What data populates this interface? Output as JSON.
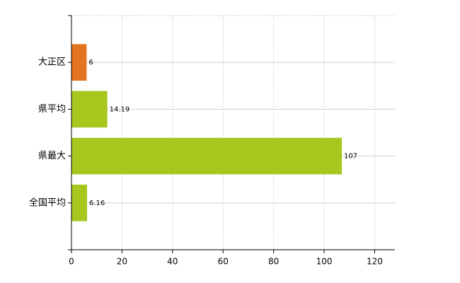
{
  "chart_data": {
    "type": "bar",
    "orientation": "horizontal",
    "categories": [
      "大正区",
      "県平均",
      "県最大",
      "全国平均"
    ],
    "values": [
      6,
      14.19,
      107,
      6.16
    ],
    "colors": [
      "#e2731f",
      "#a6c71d",
      "#a6c71d",
      "#a6c71d"
    ],
    "xlim": [
      0,
      128
    ],
    "xticks": [
      0,
      20,
      40,
      60,
      80,
      100,
      120
    ],
    "grid": true
  }
}
